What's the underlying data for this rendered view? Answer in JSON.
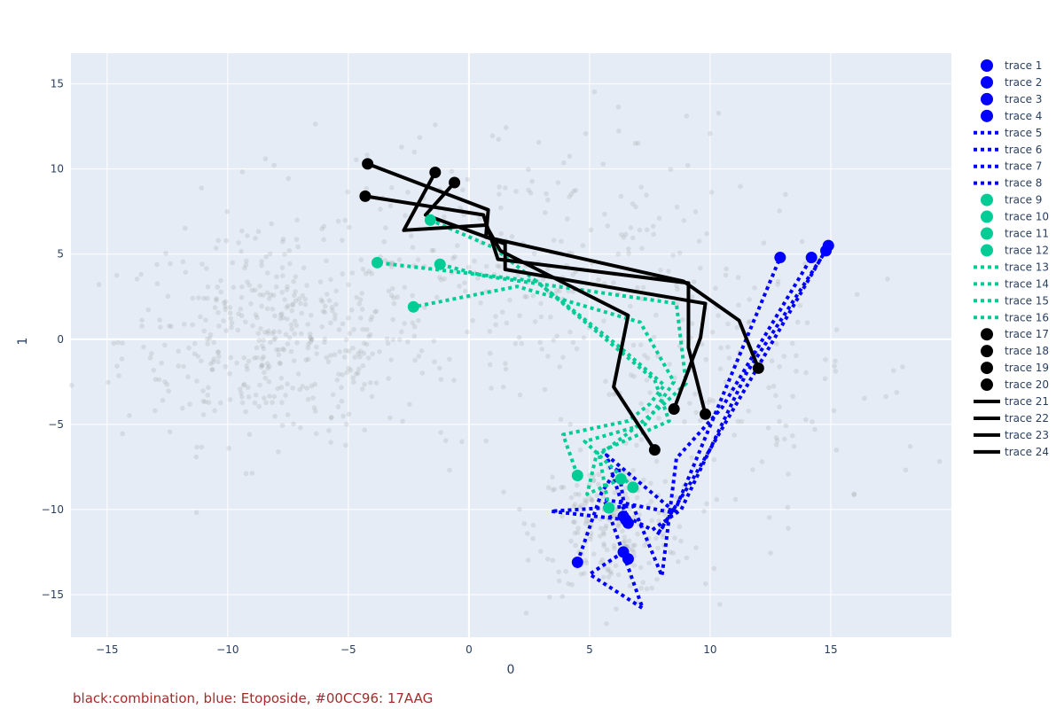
{
  "chart_data": {
    "type": "scatter",
    "title": "",
    "xlabel": "0",
    "ylabel": "1",
    "xlim": [
      -16.5,
      20
    ],
    "ylim": [
      -17.5,
      16.8
    ],
    "x_ticks": [
      -15,
      -10,
      -5,
      0,
      5,
      10,
      15
    ],
    "y_ticks": [
      -15,
      -10,
      -5,
      0,
      5,
      10,
      15
    ],
    "grid": true,
    "legend_placement": "right",
    "annotation": "black:combination, blue: Etoposide, #00CC96: 17AAG",
    "colors": {
      "blue": "#0000ff",
      "green": "#00cc96",
      "black": "#000000",
      "background": "#e5ecf6",
      "annotation": "#a52a2a",
      "cloud": "#999999"
    },
    "background_points": {
      "description_hidden": true,
      "clusters": [
        {
          "cx": -8,
          "cy": 0,
          "sx": 3.2,
          "sy": 3.0,
          "n": 430
        },
        {
          "cx": 6,
          "cy": -11,
          "sx": 1.6,
          "sy": 2.0,
          "n": 230
        },
        {
          "cx": 2,
          "cy": 4,
          "sx": 5.0,
          "sy": 4.5,
          "n": 300
        },
        {
          "cx": 12,
          "cy": -3,
          "sx": 3.5,
          "sy": 4.0,
          "n": 120
        }
      ]
    },
    "series": [
      {
        "name": "trace 1",
        "mode": "markers",
        "color": "#0000ff",
        "x": [
          4.5,
          6.4,
          6.6,
          14.8
        ],
        "y": [
          -13.1,
          -10.4,
          -12.9,
          5.2
        ]
      },
      {
        "name": "trace 2",
        "mode": "markers",
        "color": "#0000ff",
        "x": [
          6.4,
          12.9
        ],
        "y": [
          -12.5,
          4.8
        ]
      },
      {
        "name": "trace 3",
        "mode": "markers",
        "color": "#0000ff",
        "x": [
          6.5,
          14.2
        ],
        "y": [
          -10.6,
          4.8
        ]
      },
      {
        "name": "trace 4",
        "mode": "markers",
        "color": "#0000ff",
        "x": [
          6.6,
          14.9
        ],
        "y": [
          -10.8,
          5.5
        ]
      },
      {
        "name": "trace 5",
        "mode": "lines",
        "dash": "dot",
        "color": "#0000ff",
        "x": [
          4.5,
          5.5,
          6.2,
          6.5,
          7.6,
          8.8,
          11.5,
          14.8
        ],
        "y": [
          -13.1,
          -9.0,
          -7.5,
          -10.4,
          -11.2,
          -10.0,
          -2.0,
          5.2
        ]
      },
      {
        "name": "trace 6",
        "mode": "lines",
        "dash": "dot",
        "color": "#0000ff",
        "x": [
          6.4,
          5.0,
          7.2,
          5.6,
          8.5,
          12.9
        ],
        "y": [
          -12.5,
          -13.8,
          -15.8,
          -9.4,
          -10.2,
          4.8
        ]
      },
      {
        "name": "trace 7",
        "mode": "lines",
        "dash": "dot",
        "color": "#0000ff",
        "x": [
          6.5,
          3.4,
          6.8,
          8.0,
          8.6,
          10.5,
          14.2
        ],
        "y": [
          -10.6,
          -10.1,
          -9.8,
          -13.9,
          -7.0,
          -4.0,
          4.8
        ]
      },
      {
        "name": "trace 8",
        "mode": "lines",
        "dash": "dot",
        "color": "#0000ff",
        "x": [
          6.6,
          5.7,
          8.5,
          7.8,
          9.2,
          14.9
        ],
        "y": [
          -10.8,
          -6.8,
          -10.1,
          -11.5,
          -8.4,
          5.5
        ]
      },
      {
        "name": "trace 9",
        "mode": "markers",
        "color": "#00cc96",
        "x": [
          4.5,
          -1.6
        ],
        "y": [
          -8.0,
          7.0
        ]
      },
      {
        "name": "trace 10",
        "mode": "markers",
        "color": "#00cc96",
        "x": [
          6.3,
          -3.8
        ],
        "y": [
          -8.2,
          4.5
        ]
      },
      {
        "name": "trace 11",
        "mode": "markers",
        "color": "#00cc96",
        "x": [
          5.8,
          -1.2
        ],
        "y": [
          -9.9,
          4.4
        ]
      },
      {
        "name": "trace 12",
        "mode": "markers",
        "color": "#00cc96",
        "x": [
          6.8,
          -2.3
        ],
        "y": [
          -8.7,
          1.9
        ]
      },
      {
        "name": "trace 13",
        "mode": "lines",
        "dash": "dot",
        "color": "#00cc96",
        "x": [
          4.5,
          3.9,
          6.6,
          7.5,
          8.1,
          6.2,
          1.0,
          -1.6
        ],
        "y": [
          -8.0,
          -5.6,
          -4.8,
          -3.8,
          -2.7,
          -0.4,
          5.4,
          7.0
        ]
      },
      {
        "name": "trace 14",
        "mode": "lines",
        "dash": "dot",
        "color": "#00cc96",
        "x": [
          6.3,
          4.9,
          5.3,
          8.3,
          7.7,
          2.8,
          -3.8
        ],
        "y": [
          -8.2,
          -9.1,
          -6.7,
          -4.8,
          -2.4,
          3.4,
          4.5
        ]
      },
      {
        "name": "trace 15",
        "mode": "lines",
        "dash": "dot",
        "color": "#00cc96",
        "x": [
          5.8,
          5.4,
          6.7,
          8.0,
          9.0,
          8.6,
          0.7,
          -1.2
        ],
        "y": [
          -9.9,
          -6.8,
          -5.4,
          -3.9,
          -2.6,
          2.1,
          3.7,
          4.4
        ]
      },
      {
        "name": "trace 16",
        "mode": "lines",
        "dash": "dot",
        "color": "#00cc96",
        "x": [
          6.8,
          4.8,
          7.3,
          8.5,
          7.1,
          2.0,
          -2.3
        ],
        "y": [
          -8.7,
          -6.0,
          -5.0,
          -2.5,
          1.0,
          3.1,
          1.9
        ]
      },
      {
        "name": "trace 17",
        "mode": "markers",
        "color": "#000000",
        "x": [
          9.8,
          -4.3
        ],
        "y": [
          -4.4,
          8.4
        ]
      },
      {
        "name": "trace 18",
        "mode": "markers",
        "color": "#000000",
        "x": [
          12.0,
          -4.2
        ],
        "y": [
          -1.7,
          10.3
        ]
      },
      {
        "name": "trace 19",
        "mode": "markers",
        "color": "#000000",
        "x": [
          8.5,
          -0.6
        ],
        "y": [
          -4.1,
          9.2
        ]
      },
      {
        "name": "trace 20",
        "mode": "markers",
        "color": "#000000",
        "x": [
          7.7,
          -1.4
        ],
        "y": [
          -6.5,
          9.8
        ]
      },
      {
        "name": "trace 21",
        "mode": "lines",
        "dash": "solid",
        "color": "#000000",
        "x": [
          9.8,
          9.1,
          9.1,
          1.2,
          0.6,
          -4.3
        ],
        "y": [
          -4.4,
          -0.5,
          3.3,
          4.7,
          7.3,
          8.4
        ]
      },
      {
        "name": "trace 22",
        "mode": "lines",
        "dash": "solid",
        "color": "#000000",
        "x": [
          12.0,
          11.2,
          8.9,
          0.7,
          0.8,
          -4.2
        ],
        "y": [
          -1.7,
          1.1,
          3.4,
          6.0,
          7.6,
          10.3
        ]
      },
      {
        "name": "trace 23",
        "mode": "lines",
        "dash": "solid",
        "color": "#000000",
        "x": [
          8.5,
          9.6,
          9.8,
          1.5,
          1.5,
          -1.8,
          -0.6
        ],
        "y": [
          -4.1,
          0.1,
          2.1,
          4.1,
          5.6,
          7.3,
          9.2
        ]
      },
      {
        "name": "trace 24",
        "mode": "lines",
        "dash": "solid",
        "color": "#000000",
        "x": [
          7.7,
          6.0,
          6.6,
          1.3,
          0.7,
          -2.7,
          -1.4
        ],
        "y": [
          -6.5,
          -2.8,
          1.4,
          5.2,
          6.7,
          6.4,
          9.8
        ]
      }
    ]
  }
}
